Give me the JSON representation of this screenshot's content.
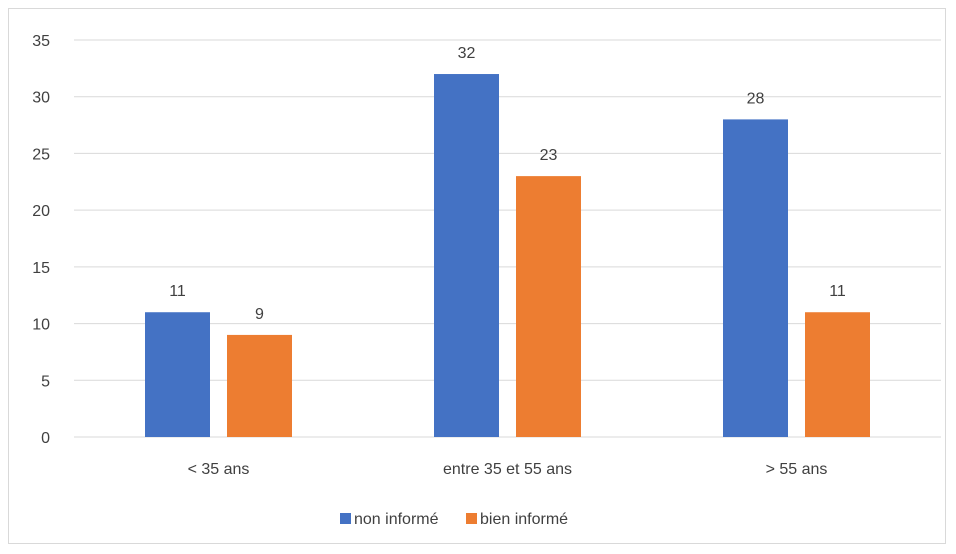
{
  "chart_data": {
    "type": "bar",
    "categories": [
      "< 35 ans",
      "entre 35 et 55 ans",
      "> 55 ans"
    ],
    "series": [
      {
        "name": "non informé",
        "values": [
          11,
          32,
          28
        ],
        "color": "#4472c4"
      },
      {
        "name": "bien informé",
        "values": [
          9,
          23,
          11
        ],
        "color": "#ed7d31"
      }
    ],
    "ylim": [
      0,
      35
    ],
    "yticks": [
      0,
      5,
      10,
      15,
      20,
      25,
      30,
      35
    ],
    "title": "",
    "xlabel": "",
    "ylabel": "",
    "grid": true,
    "data_labels": true,
    "legend_position": "bottom"
  }
}
